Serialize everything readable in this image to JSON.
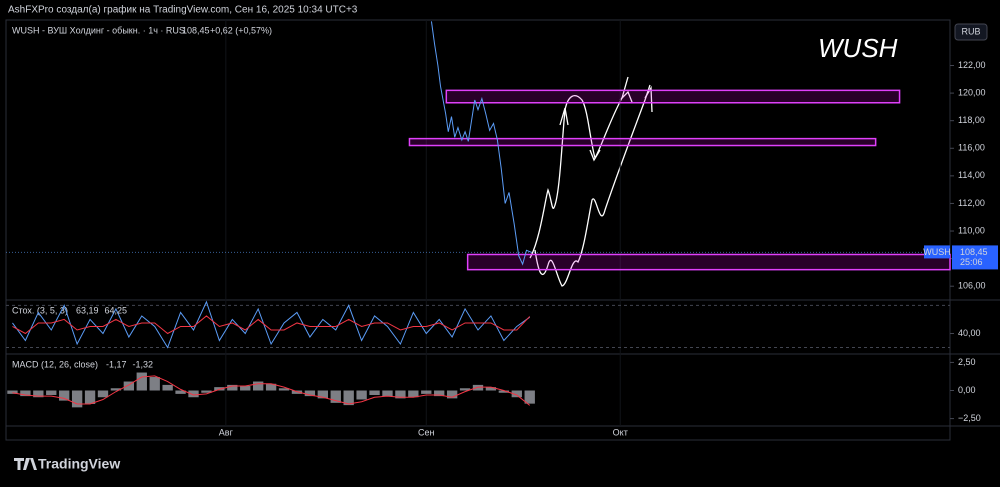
{
  "header": {
    "caption": "AshFXPro создал(а) график на TradingView.com, Сен 16, 2025 10:34 UTC+3",
    "brand": "TradingView"
  },
  "chart_data": [
    {
      "type": "line",
      "title": "WUSH",
      "legend": "WUSH - ВУШ Холдинг - обыкн. · 1ч · RUS",
      "last_label": "108,45",
      "change": "+0,62 (+0,57%)",
      "tag": "WUSH",
      "timer": "25:06",
      "currency": "RUB",
      "x": [
        31.8,
        32.3,
        32.8,
        33.2,
        33.6,
        34.0,
        34.4,
        34.9,
        35.4,
        35.9,
        36.5,
        37.0,
        37.5,
        38.0,
        38.5,
        39.0,
        39.6,
        40.2,
        40.8,
        41.4,
        42.0,
        42.6,
        43.2,
        43.8,
        44.6,
        45.3,
        45.9,
        46.5,
        47.3
      ],
      "values": [
        125.2,
        123.5,
        122,
        120.5,
        119.5,
        118.5,
        117.2,
        118.3,
        116.8,
        117.5,
        116.6,
        117.2,
        116.5,
        118,
        119.5,
        118.8,
        119.6,
        118.5,
        117.3,
        117.8,
        116.6,
        114.5,
        112,
        112.8,
        110.5,
        108.2,
        107.6,
        108.6,
        108.45
      ],
      "color": "#5b9cf6",
      "zones": [
        {
          "x1": 34.1,
          "x2": 104.2,
          "y1": 120.2,
          "y2": 119.3
        },
        {
          "x1": 28.4,
          "x2": 100.5,
          "y1": 116.7,
          "y2": 116.2
        },
        {
          "x1": 37.4,
          "x2": 112,
          "y1": 108.3,
          "y2": 107.2
        }
      ],
      "xlim": [
        -34,
        112
      ],
      "xticks": [
        {
          "value": 0,
          "label": "Авг"
        },
        {
          "value": 31,
          "label": "Сен"
        },
        {
          "value": 61,
          "label": "Окт"
        }
      ],
      "ylim": [
        105,
        125.3
      ],
      "yticks": [
        {
          "value": 106,
          "label": "106,00"
        },
        {
          "value": 108,
          "label": "108,00"
        },
        {
          "value": 110,
          "label": "110,00"
        },
        {
          "value": 112,
          "label": "112,00"
        },
        {
          "value": 114,
          "label": "114,00"
        },
        {
          "value": 116,
          "label": "116,00"
        },
        {
          "value": 118,
          "label": "118,00"
        },
        {
          "value": 120,
          "label": "120,00"
        },
        {
          "value": 122,
          "label": "122,00"
        }
      ]
    },
    {
      "type": "line",
      "legend": "Стох. (3, 5, 3)",
      "xlim": [
        -34,
        112
      ],
      "x": [
        -33,
        -31,
        -29,
        -27,
        -25,
        -23,
        -21,
        -19,
        -17,
        -15,
        -13,
        -11,
        -9,
        -7,
        -5,
        -3,
        -1,
        1,
        3,
        5,
        7,
        9,
        11,
        13,
        15,
        17,
        19,
        21,
        23,
        25,
        27,
        29,
        31,
        33,
        35,
        37,
        39,
        41,
        43,
        45,
        47
      ],
      "series": [
        {
          "color": "#5b9cf6",
          "value_label": "63,19",
          "values": [
            55,
            30,
            70,
            45,
            80,
            25,
            60,
            40,
            75,
            35,
            65,
            50,
            20,
            70,
            45,
            85,
            30,
            60,
            40,
            75,
            25,
            55,
            70,
            35,
            60,
            45,
            80,
            30,
            65,
            50,
            25,
            70,
            40,
            60,
            35,
            75,
            45,
            65,
            30,
            50,
            63.19
          ]
        },
        {
          "color": "#f23645",
          "value_label": "64,25",
          "values": [
            50,
            40,
            55,
            55,
            60,
            45,
            50,
            50,
            60,
            50,
            55,
            55,
            40,
            50,
            50,
            65,
            50,
            55,
            45,
            60,
            45,
            45,
            55,
            50,
            50,
            50,
            60,
            50,
            55,
            55,
            45,
            50,
            50,
            55,
            45,
            55,
            55,
            55,
            45,
            45,
            64.25
          ]
        }
      ],
      "levels": [
        80,
        20
      ],
      "ylim": [
        10.8,
        87.7
      ],
      "yticks": [
        {
          "value": 40,
          "label": "40,00"
        }
      ]
    },
    {
      "type": "bar",
      "legend": "MACD (12, 26, close)",
      "xlim": [
        -34,
        112
      ],
      "x": [
        -33,
        -31,
        -29,
        -27,
        -25,
        -23,
        -21,
        -19,
        -17,
        -15,
        -13,
        -11,
        -9,
        -7,
        -5,
        -3,
        -1,
        1,
        3,
        5,
        7,
        9,
        11,
        13,
        15,
        17,
        19,
        21,
        23,
        25,
        27,
        29,
        31,
        33,
        35,
        37,
        39,
        41,
        43,
        45,
        47
      ],
      "series": [
        {
          "color": "#b2b5be",
          "value_label": "-1,17",
          "values": [
            -0.3,
            -0.5,
            -0.6,
            -0.4,
            -0.9,
            -1.5,
            -1.2,
            -0.6,
            0.2,
            0.8,
            1.6,
            1.2,
            0.5,
            -0.3,
            -0.6,
            -0.2,
            0.3,
            0.5,
            0.4,
            0.8,
            0.6,
            0.2,
            -0.3,
            -0.5,
            -0.7,
            -1.1,
            -1.3,
            -0.8,
            -0.4,
            -0.5,
            -0.7,
            -0.6,
            -0.3,
            -0.5,
            -0.7,
            0.2,
            0.5,
            0.3,
            -0.2,
            -0.6,
            -1.17
          ]
        },
        {
          "color": "#f23645",
          "value_label": "-1,32",
          "values": [
            -0.2,
            -0.4,
            -0.5,
            -0.5,
            -0.7,
            -1.2,
            -1.2,
            -0.8,
            -0.1,
            0.5,
            1.2,
            1.3,
            0.8,
            0.1,
            -0.4,
            -0.3,
            0.1,
            0.4,
            0.4,
            0.6,
            0.6,
            0.3,
            -0.1,
            -0.4,
            -0.6,
            -0.9,
            -1.2,
            -1.0,
            -0.6,
            -0.5,
            -0.6,
            -0.6,
            -0.4,
            -0.4,
            -0.6,
            -0.1,
            0.3,
            0.3,
            0,
            -0.4,
            -1.32
          ]
        }
      ],
      "ylim": [
        -3.16,
        3.25
      ],
      "yticks": [
        {
          "value": 2.5,
          "label": "2,50"
        },
        {
          "value": 0,
          "label": "0,00"
        },
        {
          "value": -2.5,
          "label": "−2,50"
        }
      ]
    }
  ]
}
